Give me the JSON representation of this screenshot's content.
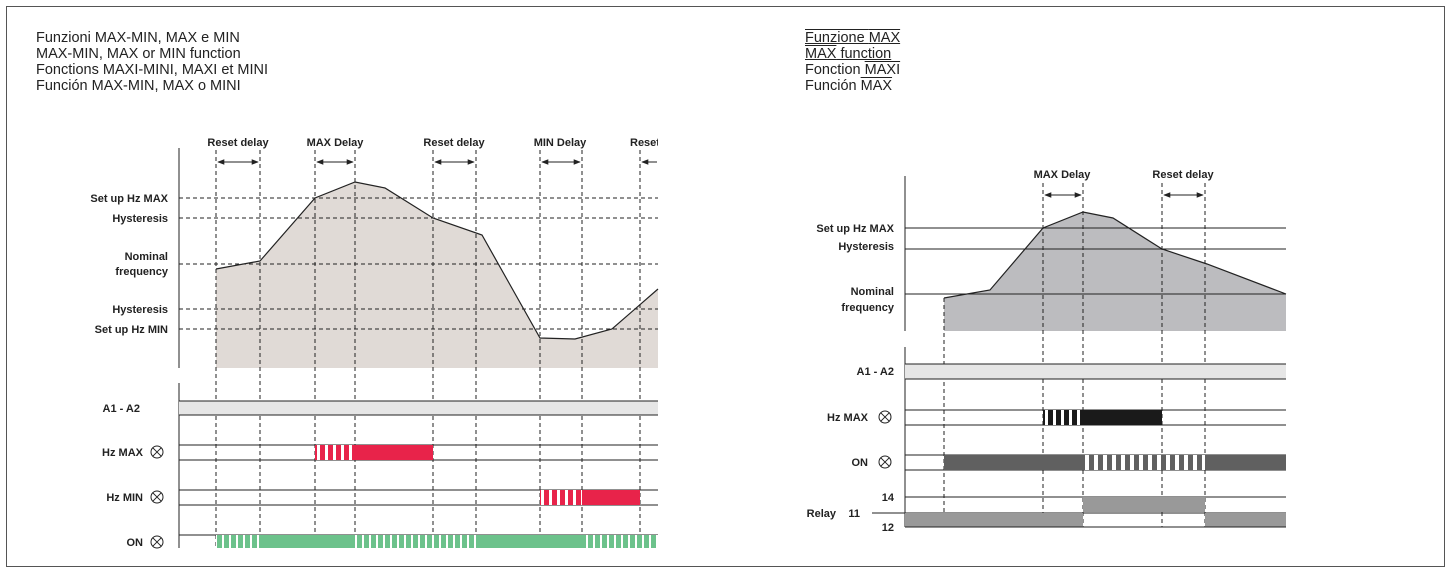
{
  "left": {
    "titles": [
      "Funzioni MAX-MIN, MAX e MIN",
      "MAX-MIN, MAX or MIN function",
      "Fonctions MAXI-MINI, MAXI et MINI",
      "Función MAX-MIN, MAX o MINI"
    ],
    "top_labels": {
      "reset_delay_1": "Reset delay",
      "max_delay": "MAX Delay",
      "reset_delay_2": "Reset delay",
      "min_delay": "MIN Delay",
      "reset_cut": "Reset"
    },
    "axis_labels": {
      "setup_hz_max": "Set up Hz MAX",
      "hysteresis_top": "Hysteresis",
      "nominal_1": "Nominal",
      "nominal_2": "frequency",
      "hysteresis_bottom": "Hysteresis",
      "setup_hz_min": "Set up Hz MIN"
    },
    "rows": {
      "a1a2": "A1 - A2",
      "hzmax": "Hz MAX",
      "hzmin": "Hz MIN",
      "on": "ON"
    },
    "colors": {
      "area": "#e0dad6",
      "hzmax": "#e8234a",
      "hzmin": "#e8234a",
      "on": "#6cc28b",
      "supply": "#e6e6e6"
    }
  },
  "right": {
    "title_lines": [
      {
        "plain": "Funzione ",
        "over": "MAX",
        "style": "underline"
      },
      {
        "plain": " function",
        "over": "MAX",
        "style": "overline-first"
      },
      {
        "plain": "Fonction ",
        "over": "MAXI",
        "style": "overline"
      },
      {
        "plain": "Función ",
        "over": "MAX",
        "style": "overline"
      }
    ],
    "top_labels": {
      "max_delay": "MAX Delay",
      "reset_delay": "Reset delay"
    },
    "axis_labels": {
      "setup_hz_max": "Set up Hz MAX",
      "hysteresis": "Hysteresis",
      "nominal_1": "Nominal",
      "nominal_2": "frequency"
    },
    "rows": {
      "a1a2": "A1 - A2",
      "hzmax": "Hz MAX",
      "on": "ON",
      "relay": "Relay",
      "pin11": "11",
      "pin14": "14",
      "pin12": "12"
    },
    "colors": {
      "area": "#bcbcbf",
      "hzmax": "#1a1a1a",
      "on": "#606060",
      "relay": "#999999",
      "supply": "#e6e6e6"
    }
  }
}
